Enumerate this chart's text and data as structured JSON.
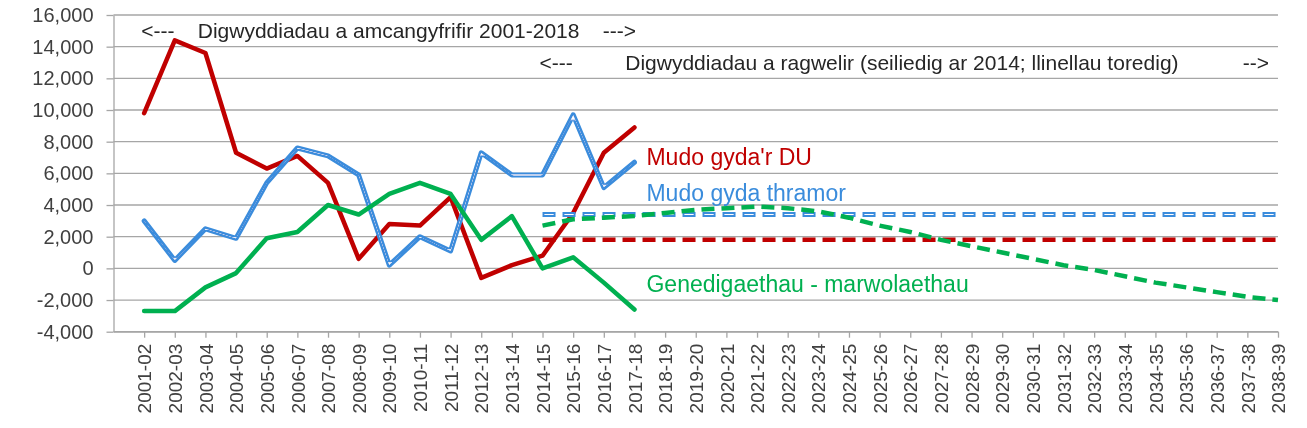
{
  "chart_data": {
    "type": "line",
    "categories": [
      "2001-02",
      "2002-03",
      "2003-04",
      "2004-05",
      "2005-06",
      "2006-07",
      "2007-08",
      "2008-09",
      "2009-10",
      "2010-11",
      "2011-12",
      "2012-13",
      "2013-14",
      "2014-15",
      "2015-16",
      "2016-17",
      "2017-18",
      "2018-19",
      "2019-20",
      "2020-21",
      "2021-22",
      "2022-23",
      "2023-24",
      "2024-25",
      "2025-26",
      "2026-27",
      "2027-28",
      "2028-29",
      "2029-30",
      "2030-31",
      "2031-32",
      "2032-33",
      "2033-34",
      "2034-35",
      "2035-36",
      "2036-37",
      "2037-38",
      "2038-39"
    ],
    "series": [
      {
        "name": "Mudo gyda'r DU",
        "color": "#c00000",
        "line_style": "solid",
        "values": [
          9800,
          14400,
          13600,
          7300,
          6300,
          7100,
          5400,
          600,
          2800,
          2700,
          4500,
          -600,
          200,
          800,
          3500,
          7300,
          8900,
          null,
          null,
          null,
          null,
          null,
          null,
          null,
          null,
          null,
          null,
          null,
          null,
          null,
          null,
          null,
          null,
          null,
          null,
          null,
          null,
          null
        ]
      },
      {
        "name": "Mudo gyda thramor",
        "color": "#3a8cdc",
        "line_style": "solid",
        "values": [
          3000,
          500,
          2500,
          1900,
          5400,
          7600,
          7100,
          5900,
          200,
          2000,
          1100,
          7300,
          5900,
          5900,
          9700,
          5100,
          6700,
          null,
          null,
          null,
          null,
          null,
          null,
          null,
          null,
          null,
          null,
          null,
          null,
          null,
          null,
          null,
          null,
          null,
          null,
          null,
          null,
          null
        ]
      },
      {
        "name": "Genedigaethau - marwolaethau",
        "color": "#00b050",
        "line_style": "solid",
        "values": [
          -2700,
          -2700,
          -1200,
          -300,
          1900,
          2300,
          4000,
          3400,
          4700,
          5400,
          4700,
          1800,
          3300,
          0,
          700,
          -900,
          -2600,
          null,
          null,
          null,
          null,
          null,
          null,
          null,
          null,
          null,
          null,
          null,
          null,
          null,
          null,
          null,
          null,
          null,
          null,
          null,
          null,
          null
        ]
      },
      {
        "color": "#c00000",
        "line_style": "dashed",
        "values": [
          null,
          null,
          null,
          null,
          null,
          null,
          null,
          null,
          null,
          null,
          null,
          null,
          null,
          1800,
          1800,
          1800,
          1800,
          1800,
          1800,
          1800,
          1800,
          1800,
          1800,
          1800,
          1800,
          1800,
          1800,
          1800,
          1800,
          1800,
          1800,
          1800,
          1800,
          1800,
          1800,
          1800,
          1800,
          1800
        ]
      },
      {
        "color": "#3a8cdc",
        "line_style": "dashed",
        "values": [
          null,
          null,
          null,
          null,
          null,
          null,
          null,
          null,
          null,
          null,
          null,
          null,
          null,
          3400,
          3400,
          3400,
          3400,
          3400,
          3400,
          3400,
          3400,
          3400,
          3400,
          3400,
          3400,
          3400,
          3400,
          3400,
          3400,
          3400,
          3400,
          3400,
          3400,
          3400,
          3400,
          3400,
          3400,
          3400
        ]
      },
      {
        "color": "#00b050",
        "line_style": "dashed",
        "values": [
          null,
          null,
          null,
          null,
          null,
          null,
          null,
          null,
          null,
          null,
          null,
          null,
          null,
          2700,
          3100,
          3200,
          3300,
          3500,
          3700,
          3800,
          3900,
          3800,
          3600,
          3200,
          2700,
          2300,
          1800,
          1400,
          1000,
          600,
          200,
          -100,
          -500,
          -900,
          -1200,
          -1500,
          -1800,
          -2000
        ]
      }
    ],
    "ylim": [
      -4000,
      16000
    ],
    "yticks": [
      {
        "value": -4000,
        "label": "-4,000"
      },
      {
        "value": -2000,
        "label": "-2,000"
      },
      0,
      {
        "value": 2000,
        "label": "2,000"
      },
      {
        "value": 4000,
        "label": "4,000"
      },
      {
        "value": 6000,
        "label": "6,000"
      },
      {
        "value": 8000,
        "label": "8,000"
      },
      {
        "value": 10000,
        "label": "10,000"
      },
      {
        "value": 12000,
        "label": "12,000"
      },
      {
        "value": 14000,
        "label": "14,000"
      },
      {
        "value": 16000,
        "label": "16,000"
      }
    ],
    "grid": "y",
    "annotations": [
      "<---    Digwyddiadau a amcangyfrifir 2001-2018    --->",
      "<---         Digwyddiadau a ragwelir (seiliedig ar 2014; llinellau toredig)           -->"
    ]
  }
}
